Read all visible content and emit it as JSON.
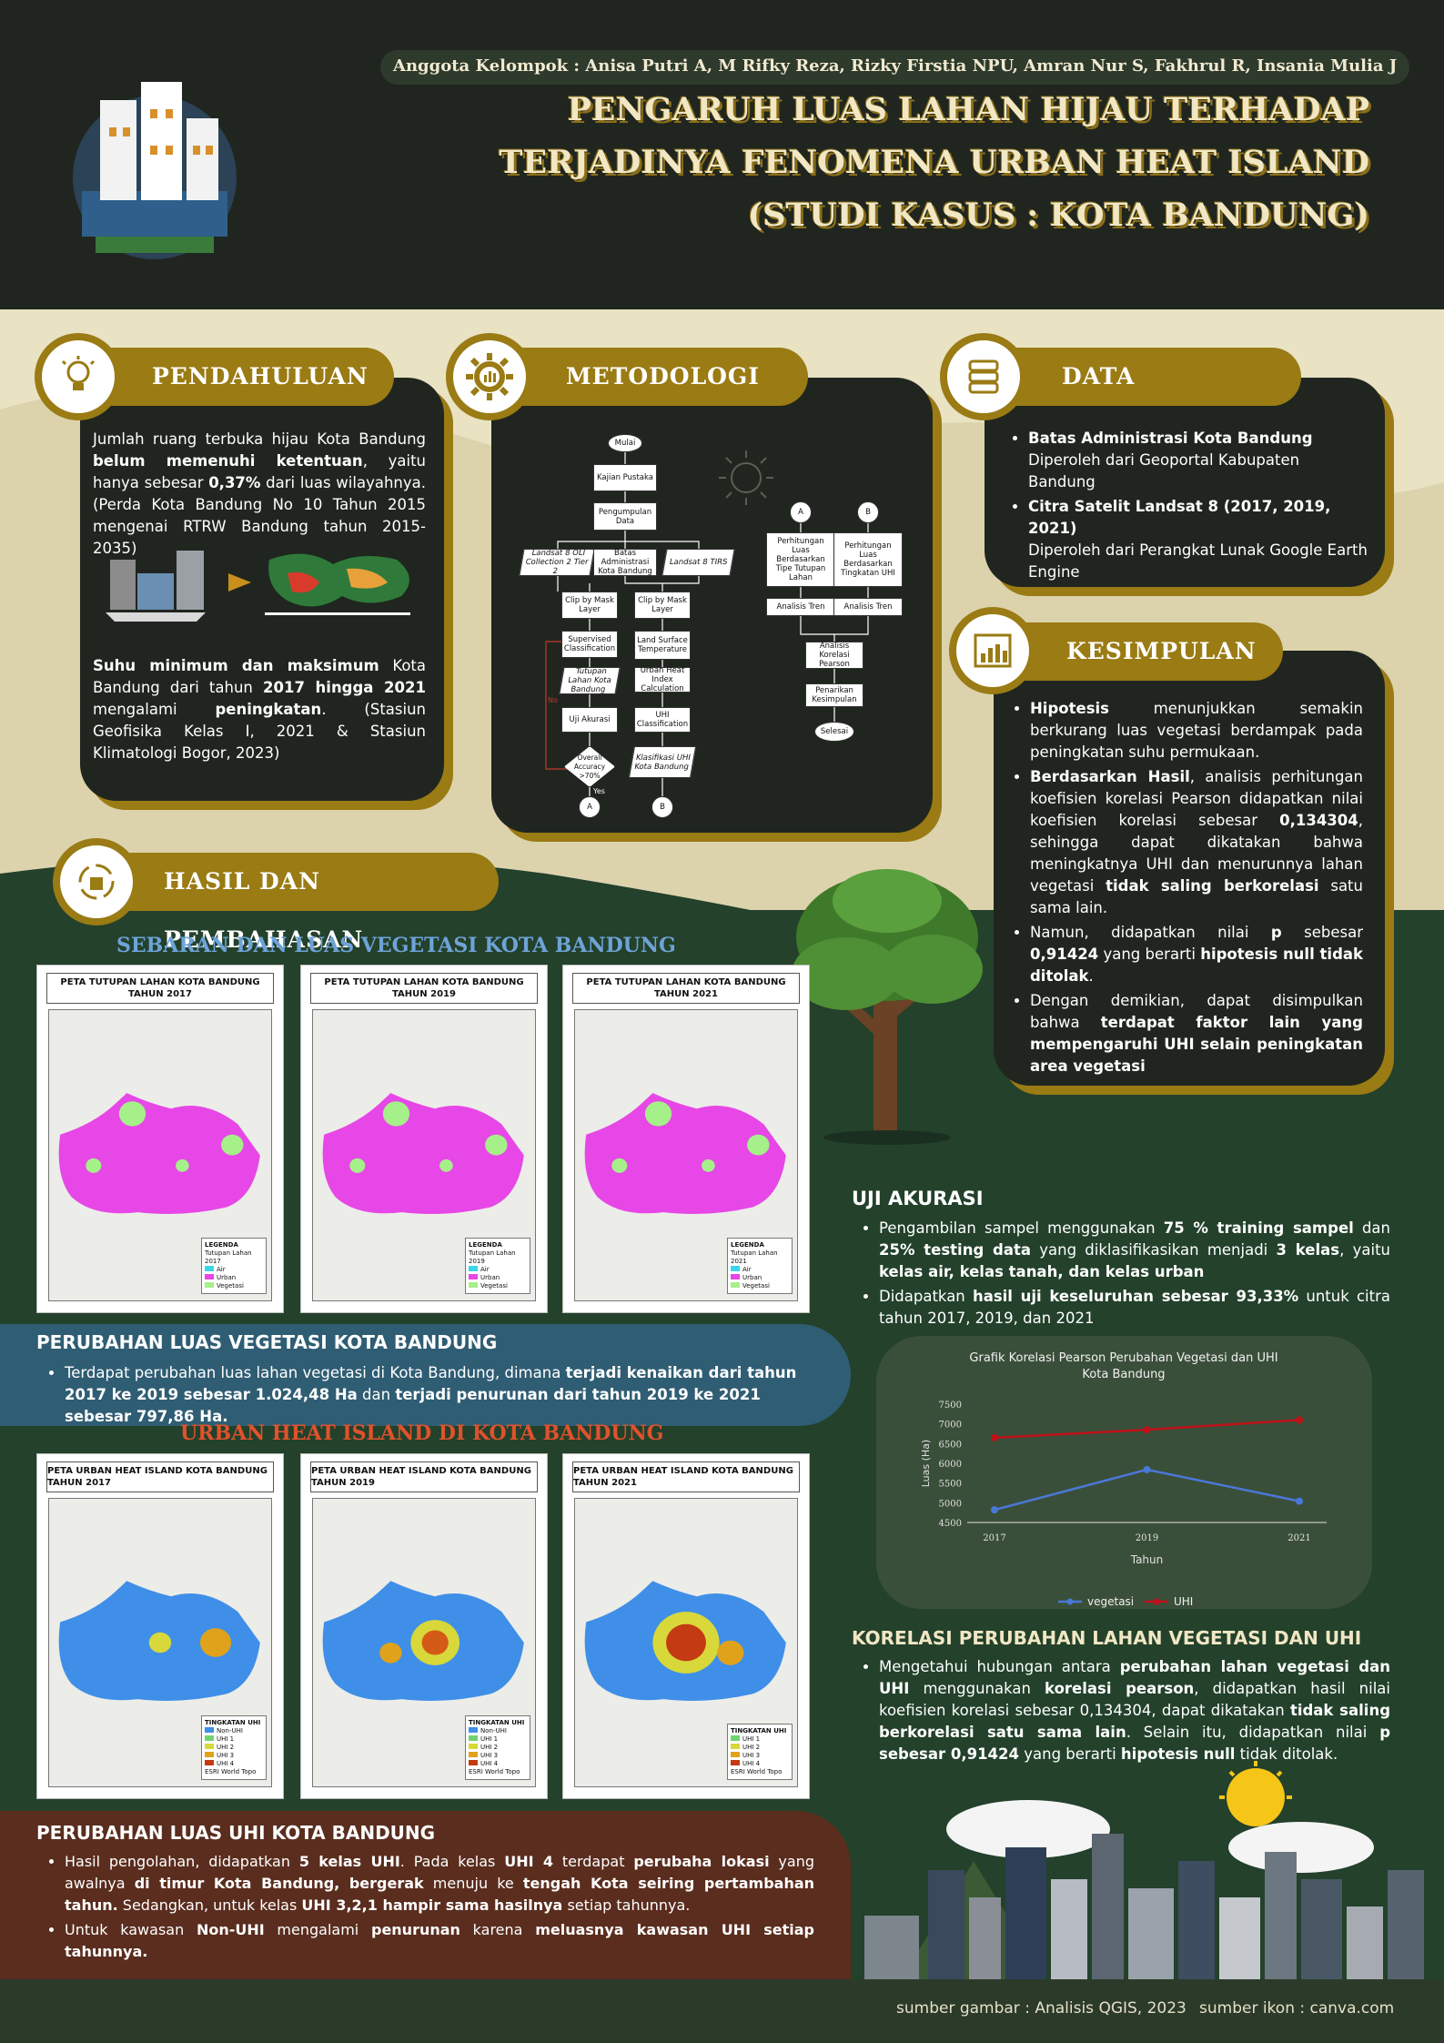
{
  "header": {
    "members": "Anggota Kelompok : Anisa Putri A, M Rifky Reza, Rizky Firstia NPU, Amran Nur S, Fakhrul R, Insania Mulia J",
    "title_line1": "PENGARUH LUAS LAHAN HIJAU TERHADAP",
    "title_line2": "TERJADINYA FENOMENA URBAN HEAT ISLAND",
    "title_line3": "(STUDI KASUS : KOTA BANDUNG)"
  },
  "pendahuluan": {
    "heading": "PENDAHULUAN",
    "p1_a": "Jumlah ruang terbuka hijau Kota Bandung ",
    "p1_b": "belum memenuhi ketentuan",
    "p1_c": ", yaitu hanya sebesar ",
    "p1_d": "0,37%",
    "p1_e": " dari luas wilayahnya. (Perda Kota Bandung No 10 Tahun 2015 mengenai RTRW Bandung tahun 2015-2035)",
    "p2_a": "Suhu minimum dan maksimum",
    "p2_b": " Kota Bandung dari tahun ",
    "p2_c": "2017 hingga 2021",
    "p2_d": " mengalami ",
    "p2_e": "peningkatan",
    "p2_f": ". (Stasiun Geofisika Kelas I, 2021 & Stasiun Klimatologi Bogor, 2023)"
  },
  "metodologi": {
    "heading": "METODOLOGI",
    "nodes": {
      "mulai": "Mulai",
      "kajian": "Kajian Pustaka",
      "pengumpulan": "Pengumpulan Data",
      "landsat_oli": "Landsat 8 OLI Collection 2 Tier 2",
      "batas": "Batas Administrasi Kota Bandung",
      "landsat_tirs": "Landsat 8 TIRS",
      "clip1": "Clip by Mask Layer",
      "clip2": "Clip by Mask Layer",
      "supervised": "Supervised Classification",
      "lst": "Land Surface Temperature",
      "tutupan": "Tutupan Lahan Kota Bandung",
      "uhi_index": "Urban Heat Index Calculation",
      "uji": "Uji Akurasi",
      "uhi_class": "UHI Classification",
      "overall": "Overall Accuracy >70%",
      "klasifikasi": "Klasifikasi UHI Kota Bandung",
      "a": "A",
      "b": "B",
      "a2": "A",
      "b2": "B",
      "perh_tutupan": "Perhitungan Luas Berdasarkan Tipe Tutupan Lahan",
      "perh_uhi": "Perhitungan Luas Berdasarkan Tingkatan UHI",
      "tren1": "Analisis Tren",
      "tren2": "Analisis Tren",
      "korelasi": "Analisis Korelasi Pearson",
      "kesimpulan": "Penarikan Kesimpulan",
      "selesai": "Selesai",
      "no": "No",
      "yes": "Yes"
    }
  },
  "data_section": {
    "heading": "DATA",
    "item1_title": "Batas Administrasi Kota Bandung",
    "item1_desc": "Diperoleh dari Geoportal Kabupaten Bandung",
    "item2_title": "Citra Satelit Landsat 8 (2017, 2019, 2021)",
    "item2_desc": "Diperoleh dari Perangkat Lunak Google Earth Engine"
  },
  "kesimpulan": {
    "heading": "KESIMPULAN",
    "b1_a": "Hipotesis",
    "b1_b": " menunjukkan semakin berkurang luas vegetasi berdampak pada peningkatan suhu permukaan.",
    "b2_a": "Berdasarkan Hasil",
    "b2_b": ", analisis perhitungan koefisien korelasi Pearson didapatkan nilai koefisien korelasi sebesar ",
    "b2_c": "0,134304",
    "b2_d": ", sehingga dapat dikatakan bahwa meningkatnya UHI dan menurunnya lahan vegetasi ",
    "b2_e": "tidak saling berkorelasi",
    "b2_f": " satu sama lain.",
    "b3_a": "Namun, didapatkan nilai ",
    "b3_b": "p",
    "b3_c": " sebesar ",
    "b3_d": "0,91424",
    "b3_e": " yang berarti ",
    "b3_f": "hipotesis null tidak ditolak",
    "b3_g": ".",
    "b4_a": "Dengan demikian, dapat disimpulkan bahwa ",
    "b4_b": "terdapat faktor lain yang mempengaruhi UHI selain peningkatan area vegetasi"
  },
  "hasil": {
    "heading": "HASIL DAN PEMBAHASAN",
    "veg_title": "SEBARAN DAN LUAS VEGETASI KOTA BANDUNG",
    "veg_maps": [
      {
        "title": "PETA TUTUPAN LAHAN KOTA BANDUNG TAHUN 2017",
        "legend_title": "LEGENDA",
        "legend_sub": "Tutupan Lahan 2017",
        "legend_items": [
          "Air",
          "Urban",
          "Vegetasi"
        ]
      },
      {
        "title": "PETA TUTUPAN LAHAN KOTA BANDUNG TAHUN 2019",
        "legend_title": "LEGENDA",
        "legend_sub": "Tutupan Lahan 2019",
        "legend_items": [
          "Air",
          "Urban",
          "Vegetasi"
        ]
      },
      {
        "title": "PETA TUTUPAN LAHAN KOTA BANDUNG TAHUN 2021",
        "legend_title": "LEGENDA",
        "legend_sub": "Tutupan Lahan 2021",
        "legend_items": [
          "Air",
          "Urban",
          "Vegetasi"
        ]
      }
    ],
    "veg_change_title": "PERUBAHAN LUAS VEGETASI KOTA BANDUNG",
    "veg_change_a": "Terdapat perubahan luas lahan vegetasi di Kota Bandung, dimana ",
    "veg_change_b": "terjadi kenaikan dari tahun 2017 ke 2019 sebesar 1.024,48 Ha",
    "veg_change_c": " dan ",
    "veg_change_d": "terjadi penurunan dari tahun 2019 ke 2021 sebesar 797,86 Ha.",
    "uhi_title": "URBAN HEAT ISLAND DI KOTA BANDUNG",
    "uhi_maps": [
      {
        "title": "PETA URBAN HEAT ISLAND KOTA BANDUNG TAHUN 2017",
        "legend_title": "TINGKATAN UHI",
        "legend_items": [
          "Non-UHI",
          "UHI 1",
          "UHI 2",
          "UHI 3",
          "UHI 4"
        ],
        "credit": "ESRI World Topo"
      },
      {
        "title": "PETA URBAN HEAT ISLAND KOTA BANDUNG TAHUN 2019",
        "legend_title": "TINGKATAN UHI",
        "legend_items": [
          "Non-UHI",
          "UHI 1",
          "UHI 2",
          "UHI 3",
          "UHI 4"
        ],
        "credit": "ESRI World Topo"
      },
      {
        "title": "PETA URBAN HEAT ISLAND KOTA BANDUNG TAHUN 2021",
        "legend_title": "TINGKATAN UHI",
        "legend_items": [
          "UHI 1",
          "UHI 2",
          "UHI 3",
          "UHI 4"
        ],
        "credit": "ESRI World Topo"
      }
    ],
    "uhi_change_title": "PERUBAHAN LUAS UHI KOTA BANDUNG",
    "uhi_b1_a": "Hasil pengolahan, didapatkan ",
    "uhi_b1_b": "5 kelas UHI",
    "uhi_b1_c": ". Pada kelas ",
    "uhi_b1_d": "UHI 4",
    "uhi_b1_e": " terdapat ",
    "uhi_b1_f": "perubaha lokasi",
    "uhi_b1_g": " yang awalnya ",
    "uhi_b1_h": "di timur Kota Bandung, bergerak",
    "uhi_b1_i": " menuju ke ",
    "uhi_b1_j": "tengah Kota seiring pertambahan tahun.",
    "uhi_b1_k": " Sedangkan, untuk kelas ",
    "uhi_b1_l": "UHI 3,2,1 hampir sama hasilnya",
    "uhi_b1_m": " setiap tahunnya.",
    "uhi_b2_a": "Untuk kawasan ",
    "uhi_b2_b": "Non-UHI",
    "uhi_b2_c": " mengalami ",
    "uhi_b2_d": "penurunan",
    "uhi_b2_e": " karena ",
    "uhi_b2_f": "meluasnya kawasan UHI setiap tahunnya."
  },
  "uji_akurasi": {
    "title": "UJI AKURASI",
    "b1_a": "Pengambilan sampel menggunakan ",
    "b1_b": "75 % training sampel",
    "b1_c": " dan ",
    "b1_d": "25% testing data",
    "b1_e": " yang diklasifikasikan menjadi ",
    "b1_f": "3 kelas",
    "b1_g": ", yaitu ",
    "b1_h": "kelas air, kelas tanah, dan kelas urban",
    "b2_a": "Didapatkan ",
    "b2_b": "hasil uji keseluruhan sebesar 93,33%",
    "b2_c": " untuk citra tahun 2017, 2019, dan 2021"
  },
  "chart_data": {
    "type": "line",
    "title": "Grafik Korelasi Pearson Perubahan Vegetasi dan UHI Kota Bandung",
    "xlabel": "Tahun",
    "ylabel": "Luas (Ha)",
    "categories": [
      "2017",
      "2019",
      "2021"
    ],
    "ylim": [
      4500,
      7500
    ],
    "yticks": [
      "7500",
      "7000",
      "6500",
      "6000",
      "5500",
      "5000",
      "4500"
    ],
    "series": [
      {
        "name": "vegetasi",
        "values": [
          4820,
          5840,
          5040
        ],
        "color": "#4a78d8"
      },
      {
        "name": "UHI",
        "values": [
          6650,
          6850,
          7100
        ],
        "color": "#c0121a"
      }
    ],
    "legend": "bottom"
  },
  "korelasi": {
    "title": "KORELASI PERUBAHAN LAHAN VEGETASI DAN UHI",
    "a": "Mengetahui hubungan antara ",
    "b": "perubahan lahan vegetasi dan UHI",
    "c": " menggunakan ",
    "d": "korelasi pearson",
    "e": ", didapatkan hasil nilai koefisien korelasi sebesar 0,134304, dapat dikatakan ",
    "f": "tidak saling berkorelasi satu sama lain",
    "g": ". Selain itu, didapatkan nilai ",
    "h": "p sebesar 0,91424",
    "i": " yang berarti ",
    "j": "hipotesis null",
    "k": " tidak ditolak."
  },
  "footer": {
    "source_img": "sumber gambar : Analisis QGIS, 2023",
    "source_icon": "sumber ikon : canva.com"
  },
  "colors": {
    "dark": "#20261f",
    "gold": "#9a7b14",
    "cream": "#e9e2c3",
    "green": "#23412b",
    "blue_band": "#2f5d73",
    "brown_band": "#5a2d1e",
    "heading_blue": "#6ea3d8",
    "heading_red": "#e0522c"
  }
}
